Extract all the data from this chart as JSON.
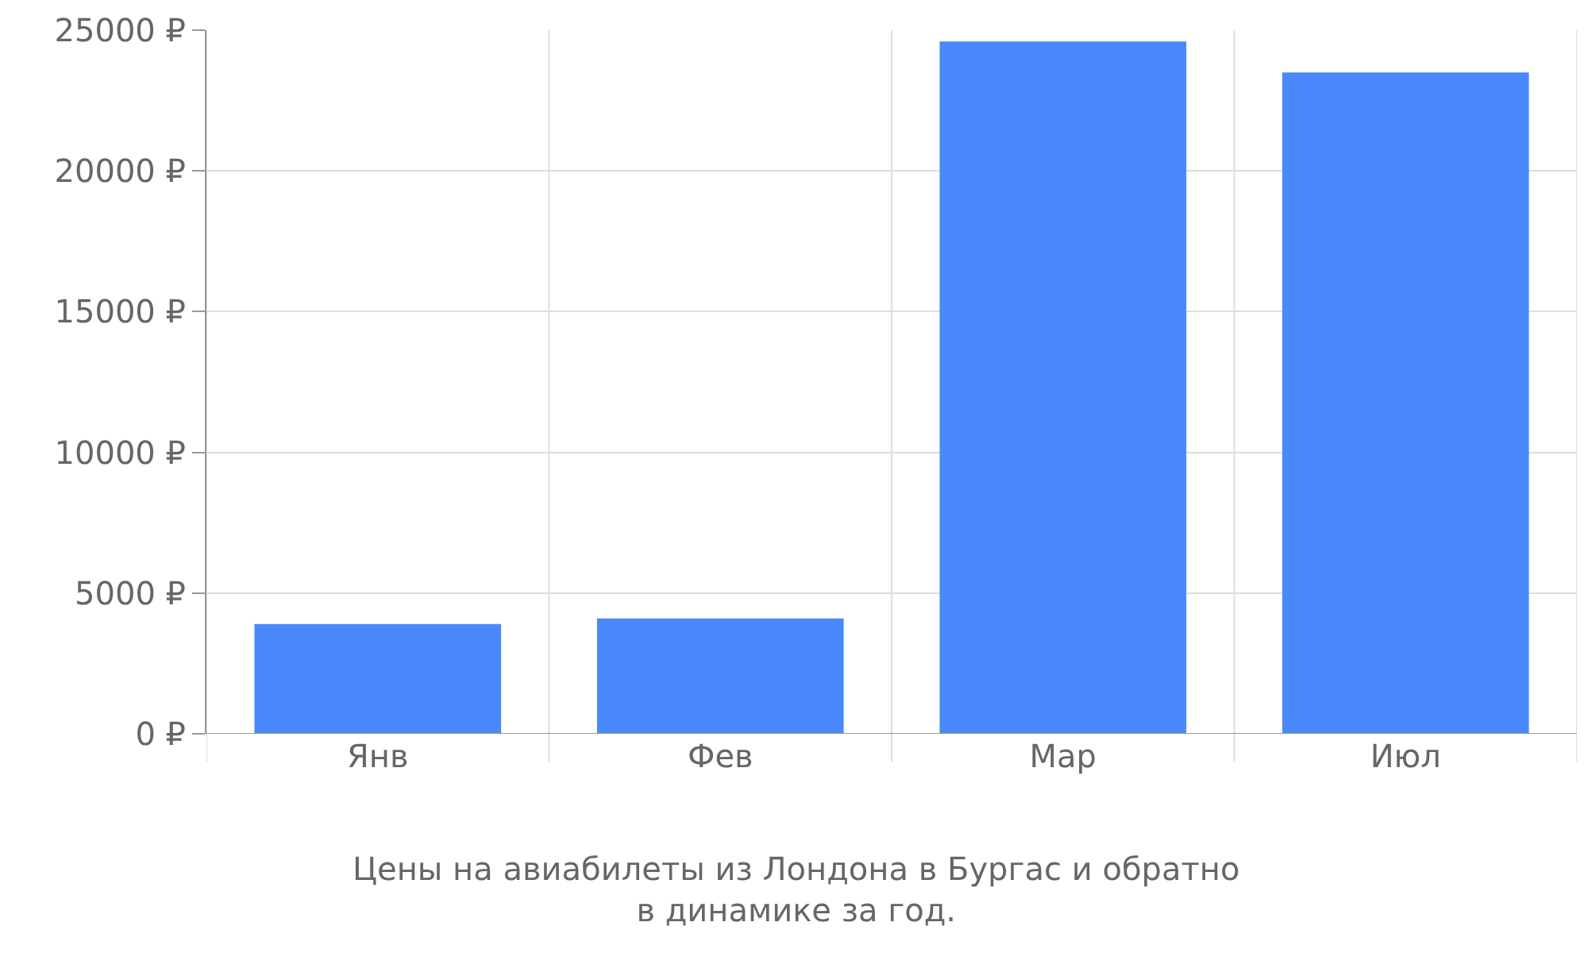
{
  "chart_data": {
    "type": "bar",
    "title": "Цены на авиабилеты из Лондона в Бургас и обратно в динамике за год.",
    "categories": [
      "Янв",
      "Фев",
      "Мар",
      "Июл"
    ],
    "values": [
      3900,
      4100,
      24600,
      23500
    ],
    "color": "#4a89fc",
    "ylim": [
      0,
      25000
    ],
    "yticks": [
      {
        "value": 0,
        "label": "0 ₽"
      },
      {
        "value": 5000,
        "label": "5000 ₽"
      },
      {
        "value": 10000,
        "label": "10000 ₽"
      },
      {
        "value": 15000,
        "label": "15000 ₽"
      },
      {
        "value": 20000,
        "label": "20000 ₽"
      },
      {
        "value": 25000,
        "label": "25000 ₽"
      }
    ],
    "grid": true
  }
}
